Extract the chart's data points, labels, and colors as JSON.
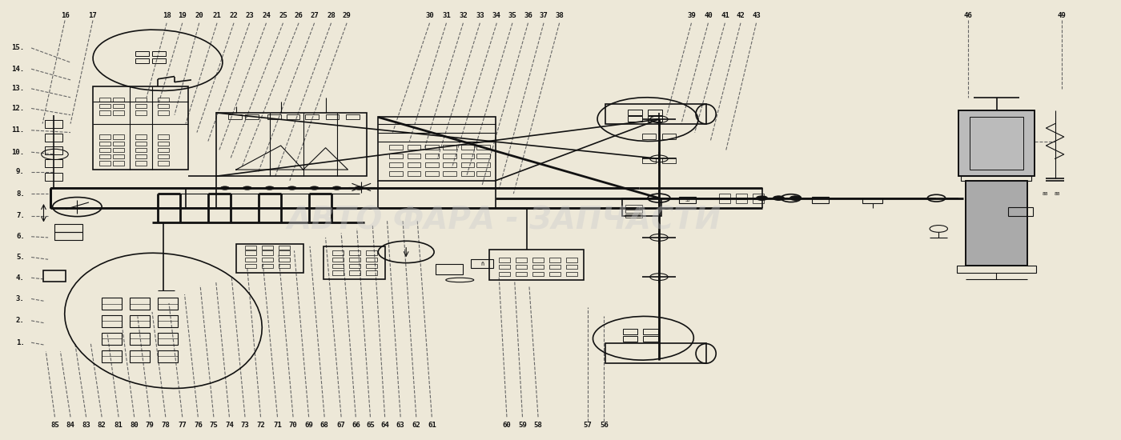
{
  "bg_color": "#ede8d8",
  "line_color": "#111111",
  "watermark_text": "АВТО ФАРА - ЗАПЧАСТИ",
  "watermark_color": "#cccccc",
  "top_labels_left": [
    [
      "16",
      0.057
    ],
    [
      "17",
      0.082
    ]
  ],
  "top_labels_mid1": [
    [
      "18",
      0.148
    ],
    [
      "19",
      0.162
    ],
    [
      "20",
      0.177
    ],
    [
      "21",
      0.193
    ],
    [
      "22",
      0.208
    ],
    [
      "23",
      0.222
    ],
    [
      "24",
      0.237
    ],
    [
      "25",
      0.252
    ],
    [
      "26",
      0.266
    ],
    [
      "27",
      0.28
    ],
    [
      "28",
      0.295
    ],
    [
      "29",
      0.309
    ]
  ],
  "top_labels_mid2": [
    [
      "30",
      0.383
    ],
    [
      "31",
      0.398
    ],
    [
      "32",
      0.413
    ],
    [
      "33",
      0.428
    ],
    [
      "34",
      0.443
    ],
    [
      "35",
      0.457
    ],
    [
      "36",
      0.471
    ],
    [
      "37",
      0.485
    ],
    [
      "38",
      0.499
    ]
  ],
  "top_labels_right1": [
    [
      "39",
      0.617
    ],
    [
      "40",
      0.632
    ],
    [
      "41",
      0.647
    ],
    [
      "42",
      0.661
    ],
    [
      "43",
      0.675
    ]
  ],
  "top_labels_right2": [
    [
      "46",
      0.864
    ],
    [
      "49",
      0.948
    ]
  ],
  "left_labels": [
    [
      "15",
      0.893
    ],
    [
      "14",
      0.845
    ],
    [
      "13",
      0.8
    ],
    [
      "12",
      0.755
    ],
    [
      "11",
      0.705
    ],
    [
      "10",
      0.655
    ],
    [
      "9",
      0.61
    ],
    [
      "8",
      0.56
    ],
    [
      "7",
      0.51
    ],
    [
      "6",
      0.462
    ],
    [
      "5",
      0.415
    ],
    [
      "4",
      0.368
    ],
    [
      "3",
      0.32
    ],
    [
      "2",
      0.27
    ],
    [
      "1",
      0.22
    ]
  ],
  "bottom_labels_left": [
    [
      "85",
      0.048
    ],
    [
      "84",
      0.062
    ],
    [
      "83",
      0.076
    ],
    [
      "82",
      0.09
    ],
    [
      "81",
      0.105
    ],
    [
      "80",
      0.119
    ],
    [
      "79",
      0.133
    ],
    [
      "78",
      0.147
    ],
    [
      "77",
      0.162
    ],
    [
      "76",
      0.176
    ],
    [
      "75",
      0.19
    ],
    [
      "74",
      0.204
    ],
    [
      "73",
      0.218
    ],
    [
      "72",
      0.232
    ],
    [
      "71",
      0.247
    ],
    [
      "70",
      0.261
    ],
    [
      "69",
      0.275
    ],
    [
      "68",
      0.289
    ],
    [
      "67",
      0.304
    ],
    [
      "66",
      0.317
    ],
    [
      "65",
      0.33
    ],
    [
      "64",
      0.343
    ],
    [
      "63",
      0.357
    ],
    [
      "62",
      0.371
    ],
    [
      "61",
      0.385
    ]
  ],
  "bottom_labels_mid": [
    [
      "60",
      0.452
    ],
    [
      "59",
      0.466
    ],
    [
      "58",
      0.48
    ]
  ],
  "bottom_labels_right": [
    [
      "57",
      0.524
    ],
    [
      "56",
      0.539
    ]
  ]
}
